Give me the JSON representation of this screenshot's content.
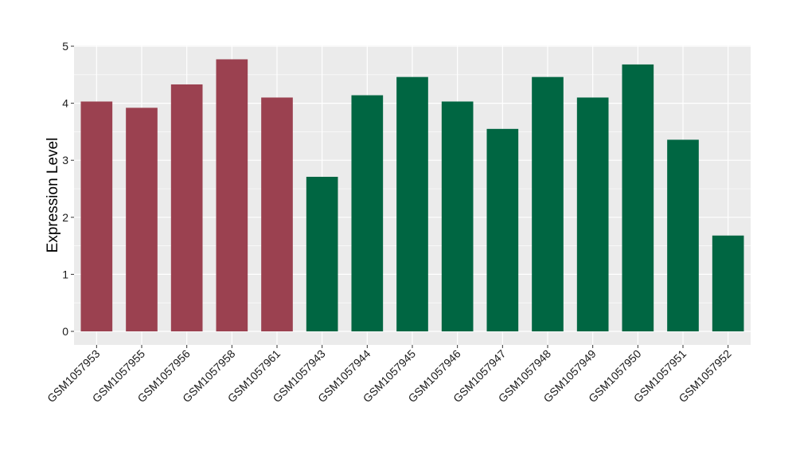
{
  "chart_data": {
    "type": "bar",
    "title": "",
    "xlabel": "",
    "ylabel": "Expression Level",
    "ylim": [
      -0.25,
      5
    ],
    "yticks": [
      0,
      1,
      2,
      3,
      4,
      5
    ],
    "grid": true,
    "legend": "none",
    "colors": {
      "group_a": "#9b4150",
      "group_b": "#006642",
      "panel": "#ebebeb",
      "gridline": "#ffffff"
    },
    "categories": [
      "GSM1057953",
      "GSM1057955",
      "GSM1057956",
      "GSM1057958",
      "GSM1057961",
      "GSM1057943",
      "GSM1057944",
      "GSM1057945",
      "GSM1057946",
      "GSM1057947",
      "GSM1057948",
      "GSM1057949",
      "GSM1057950",
      "GSM1057951",
      "GSM1057952"
    ],
    "values": [
      4.03,
      3.92,
      4.33,
      4.77,
      4.1,
      2.71,
      4.14,
      4.46,
      4.03,
      3.55,
      4.46,
      4.1,
      4.68,
      3.36,
      1.68
    ],
    "groups": [
      "a",
      "a",
      "a",
      "a",
      "a",
      "b",
      "b",
      "b",
      "b",
      "b",
      "b",
      "b",
      "b",
      "b",
      "b"
    ]
  }
}
